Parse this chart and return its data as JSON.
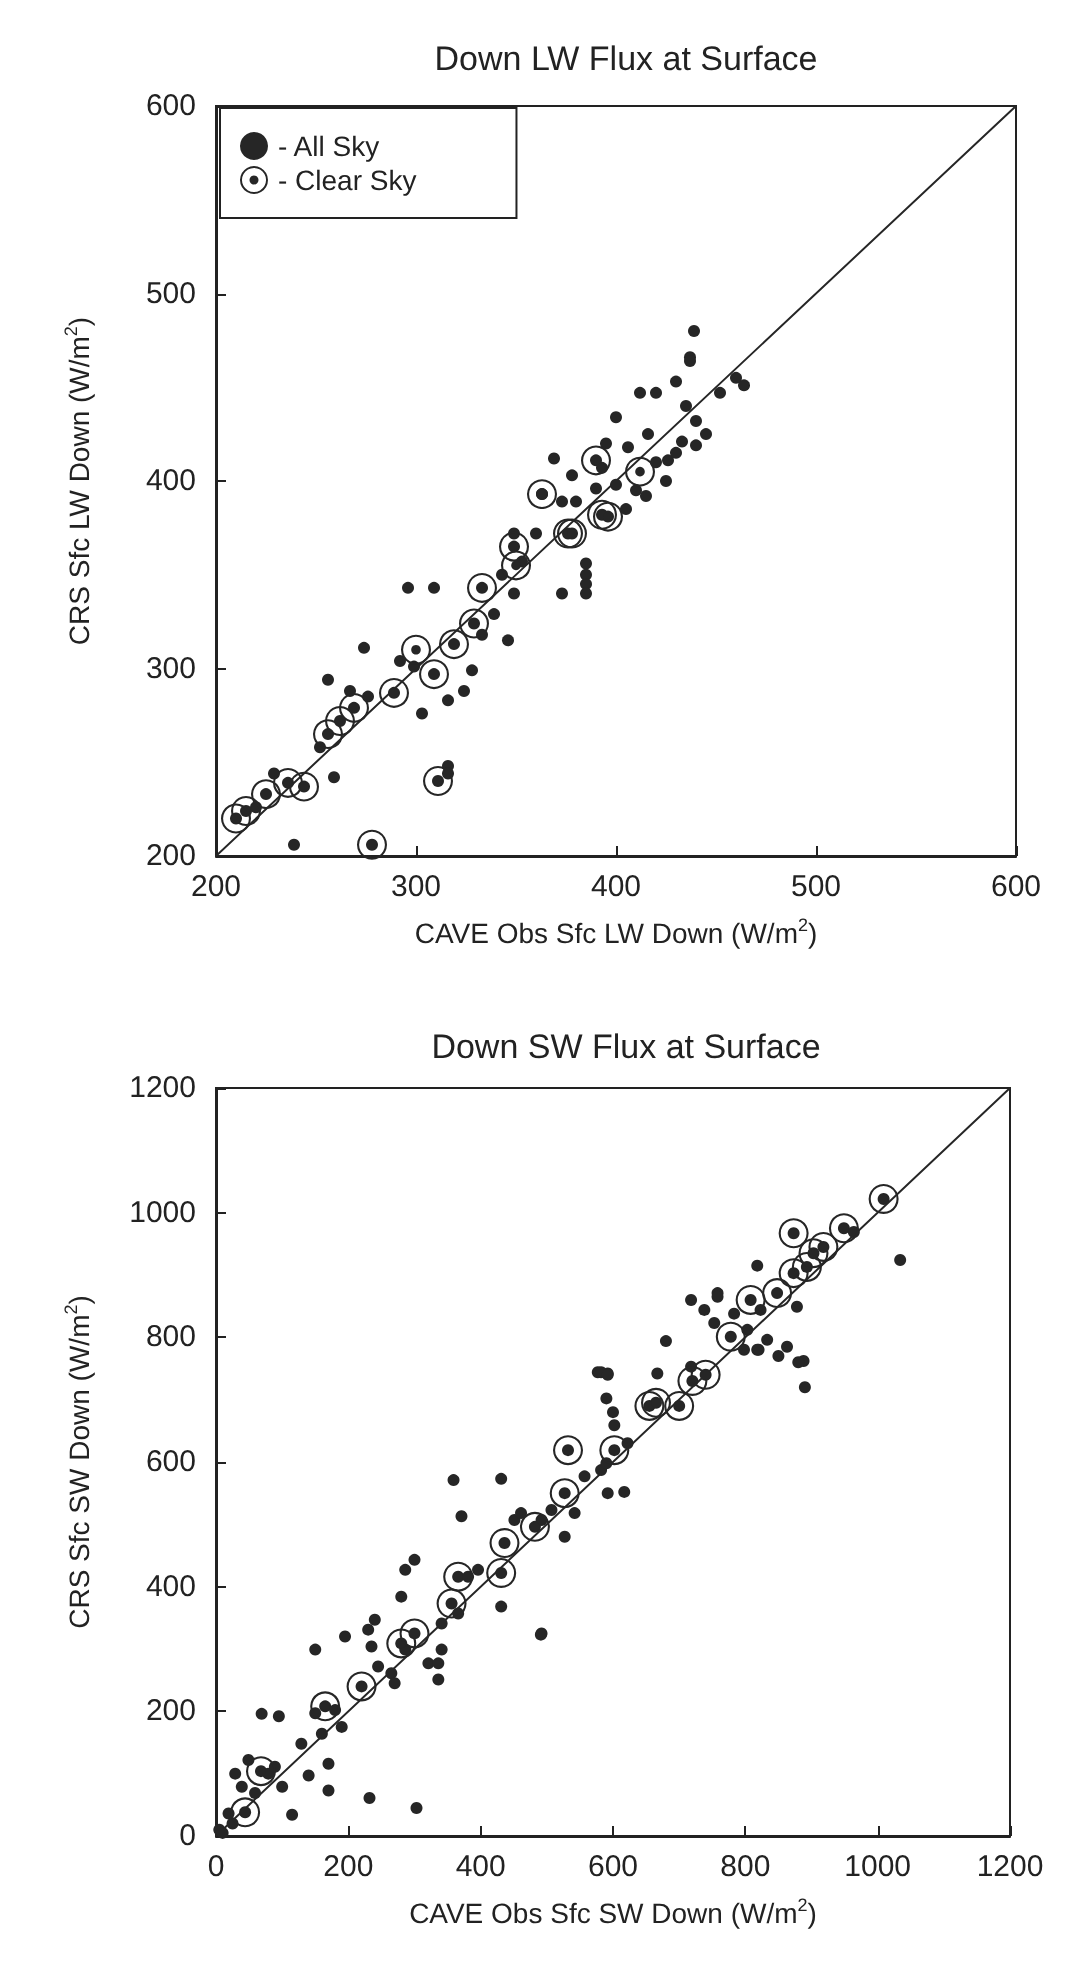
{
  "chart_data": [
    {
      "type": "scatter",
      "title": "Down LW Flux at Surface",
      "xlabel": "CAVE Obs Sfc LW Down (W/m$^{2}$)",
      "ylabel": "CRS Sfc LW Down (W/m$^{2}$)",
      "xlim": [
        200,
        600
      ],
      "ylim": [
        200,
        600
      ],
      "xticks": [
        200,
        300,
        400,
        500,
        600
      ],
      "yticks": [
        200,
        300,
        400,
        500,
        600
      ],
      "grid": false,
      "legend": "top left",
      "marker": "circle",
      "series": [
        {
          "name": "- All Sky",
          "color": "#262626",
          "x": [
            239,
            278,
            311,
            316,
            316,
            215,
            225,
            236,
            244,
            229,
            259,
            210,
            220,
            262,
            269,
            256,
            252,
            256,
            267,
            276,
            274,
            292,
            299,
            289,
            309,
            319,
            303,
            316,
            324,
            328,
            296,
            309,
            333,
            339,
            346,
            349,
            329,
            333,
            343,
            353,
            360,
            349,
            363,
            373,
            385,
            385,
            385,
            385,
            376,
            393,
            380,
            390,
            439,
            437,
            437,
            464,
            452,
            412,
            420,
            430,
            400,
            416,
            433,
            440,
            406,
            426,
            440,
            393,
            369,
            378,
            390,
            373,
            363,
            349,
            396,
            378,
            410,
            420,
            425,
            405,
            415,
            395,
            400,
            430,
            435,
            445,
            460
          ],
          "values": [
            206,
            206,
            240,
            248,
            244,
            224,
            233,
            239,
            237,
            244,
            242,
            220,
            226,
            272,
            279,
            265,
            258,
            294,
            288,
            285,
            311,
            304,
            301,
            287,
            297,
            313,
            276,
            283,
            288,
            299,
            343,
            343,
            318,
            329,
            315,
            340,
            324,
            343,
            350,
            357,
            372,
            365,
            393,
            340,
            356,
            350,
            345,
            340,
            372,
            382,
            389,
            396,
            480,
            466,
            464,
            451,
            447,
            447,
            447,
            453,
            434,
            425,
            421,
            432,
            418,
            411,
            419,
            407,
            412,
            403,
            411,
            389,
            393,
            372,
            381,
            372,
            395,
            410,
            400,
            385,
            392,
            420,
            398,
            415,
            440,
            425,
            455
          ]
        },
        {
          "name": "- Clear Sky",
          "type": "bubble",
          "color": "#262626",
          "x": [
            278,
            311,
            215,
            225,
            236,
            244,
            210,
            262,
            269,
            256,
            289,
            309,
            319,
            329,
            333,
            349,
            363,
            376,
            393,
            390,
            378,
            396,
            300,
            350,
            412
          ],
          "values": [
            206,
            240,
            224,
            233,
            239,
            237,
            220,
            272,
            279,
            265,
            287,
            297,
            313,
            324,
            343,
            365,
            393,
            372,
            382,
            411,
            372,
            381,
            310,
            355,
            405
          ],
          "sizes": [
            1,
            1,
            1,
            1,
            1,
            1,
            1,
            1,
            1,
            1,
            1,
            1,
            1,
            1,
            1,
            1,
            1,
            1,
            1,
            1,
            1,
            1,
            1,
            1,
            1
          ]
        },
        {
          "type": "line",
          "marker": "none",
          "line_style": "solid",
          "color": "#262626",
          "x": [
            200,
            600
          ],
          "values": [
            200,
            600
          ]
        }
      ]
    },
    {
      "type": "scatter",
      "title": "Down SW Flux at Surface",
      "xlabel": "CAVE Obs Sfc SW Down (W/m$^{2}$)",
      "ylabel": "CRS Sfc SW Down (W/m$^{2}$)",
      "xlim": [
        0,
        1200
      ],
      "ylim": [
        0,
        1200
      ],
      "xticks": [
        0,
        200,
        400,
        600,
        800,
        1000,
        1200
      ],
      "yticks": [
        0,
        200,
        400,
        600,
        800,
        1000,
        1200
      ],
      "grid": false,
      "legend": false,
      "marker": "circle",
      "series": [
        {
          "color": "#262626",
          "x": [
            5,
            25,
            44,
            68,
            10,
            115,
            170,
            232,
            303,
            140,
            29,
            49,
            79,
            100,
            59,
            19,
            39,
            89,
            129,
            170,
            160,
            190,
            150,
            165,
            220,
            69,
            95,
            180,
            150,
            195,
            240,
            230,
            235,
            245,
            265,
            270,
            280,
            300,
            286,
            321,
            336,
            336,
            341,
            280,
            286,
            300,
            341,
            366,
            356,
            366,
            381,
            396,
            431,
            431,
            492,
            491,
            371,
            359,
            431,
            436,
            451,
            461,
            482,
            492,
            507,
            527,
            527,
            542,
            557,
            532,
            582,
            592,
            590,
            602,
            617,
            622,
            577,
            592,
            590,
            600,
            602,
            655,
            665,
            700,
            720,
            740,
            1009,
            1034,
            949,
            964,
            873,
            918,
            903,
            893,
            873,
            818,
            848,
            808,
            823,
            878,
            758,
            758,
            718,
            738,
            753,
            783,
            778,
            803,
            818,
            798,
            833,
            863,
            888,
            680,
            718,
            582,
            592,
            667,
            890,
            880,
            850,
            820
          ],
          "values": [
            10,
            20,
            38,
            104,
            5,
            34,
            73,
            61,
            45,
            97,
            100,
            122,
            100,
            79,
            69,
            36,
            79,
            111,
            148,
            116,
            164,
            175,
            197,
            208,
            240,
            196,
            192,
            202,
            299,
            320,
            347,
            331,
            304,
            272,
            261,
            245,
            309,
            325,
            299,
            277,
            277,
            251,
            299,
            384,
            427,
            443,
            341,
            357,
            373,
            416,
            416,
            427,
            422,
            368,
            325,
            323,
            513,
            571,
            573,
            470,
            507,
            518,
            496,
            507,
            523,
            480,
            550,
            518,
            577,
            619,
            587,
            550,
            598,
            619,
            552,
            630,
            744,
            742,
            702,
            680,
            659,
            690,
            695,
            690,
            730,
            740,
            1022,
            924,
            975,
            969,
            967,
            945,
            935,
            913,
            903,
            915,
            871,
            860,
            844,
            849,
            871,
            865,
            860,
            844,
            823,
            838,
            801,
            812,
            780,
            780,
            796,
            785,
            762,
            794,
            753,
            744,
            740,
            742,
            720,
            760,
            770,
            780
          ]
        },
        {
          "type": "bubble",
          "color": "#262626",
          "x": [
            44,
            68,
            165,
            220,
            280,
            300,
            356,
            366,
            431,
            436,
            482,
            527,
            532,
            602,
            655,
            665,
            700,
            720,
            740,
            778,
            808,
            848,
            873,
            893,
            903,
            918,
            873,
            949,
            1009
          ],
          "values": [
            38,
            104,
            208,
            240,
            309,
            325,
            373,
            416,
            422,
            470,
            496,
            550,
            619,
            619,
            690,
            695,
            690,
            730,
            740,
            801,
            860,
            871,
            903,
            913,
            935,
            945,
            967,
            975,
            1022
          ],
          "sizes": [
            1,
            1,
            1,
            1,
            1,
            1,
            1,
            1,
            1,
            1,
            1,
            1,
            1,
            1,
            1,
            1,
            1,
            1,
            1,
            1,
            1,
            1,
            1,
            1,
            1,
            1,
            1,
            1,
            1
          ]
        },
        {
          "type": "line",
          "marker": "none",
          "line_style": "solid",
          "color": "#262626",
          "x": [
            0,
            1200
          ],
          "values": [
            0,
            1200
          ]
        }
      ]
    }
  ]
}
